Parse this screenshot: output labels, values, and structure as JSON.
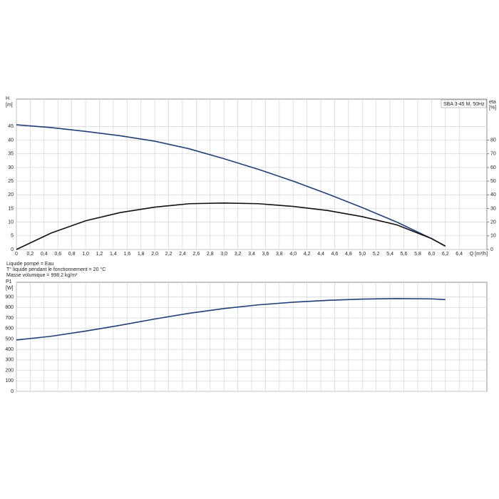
{
  "chart_data": [
    {
      "type": "line",
      "ylabel": "H",
      "yunit": "[m]",
      "y2label": "eta",
      "y2unit": "[%]",
      "xlabel": "Q [m³/h]",
      "legend": "SBA 3-45 M, 50Hz",
      "xlim": [
        0,
        6.8
      ],
      "ylim": [
        0,
        55
      ],
      "y2lim": [
        0,
        110
      ],
      "xticks": [
        0,
        {
          "value": 0.2,
          "label": "0,2"
        },
        {
          "value": 0.4,
          "label": "0,4"
        },
        {
          "value": 0.6,
          "label": "0,6"
        },
        {
          "value": 0.8,
          "label": "0,8"
        },
        {
          "value": 1.0,
          "label": "1,0"
        },
        {
          "value": 1.2,
          "label": "1,2"
        },
        {
          "value": 1.4,
          "label": "1,4"
        },
        {
          "value": 1.6,
          "label": "1,6"
        },
        {
          "value": 1.8,
          "label": "1,8"
        },
        {
          "value": 2.0,
          "label": "2,0"
        },
        {
          "value": 2.2,
          "label": "2,2"
        },
        {
          "value": 2.4,
          "label": "2,4"
        },
        {
          "value": 2.6,
          "label": "2,6"
        },
        {
          "value": 2.8,
          "label": "2,8"
        },
        {
          "value": 3.0,
          "label": "3,0"
        },
        {
          "value": 3.2,
          "label": "3,2"
        },
        {
          "value": 3.4,
          "label": "3,4"
        },
        {
          "value": 3.6,
          "label": "3,6"
        },
        {
          "value": 3.8,
          "label": "3,8"
        },
        {
          "value": 4.0,
          "label": "4,0"
        },
        {
          "value": 4.2,
          "label": "4,2"
        },
        {
          "value": 4.4,
          "label": "4,4"
        },
        {
          "value": 4.6,
          "label": "4,6"
        },
        {
          "value": 4.8,
          "label": "4,8"
        },
        {
          "value": 5.0,
          "label": "5,0"
        },
        {
          "value": 5.2,
          "label": "5,2"
        },
        {
          "value": 5.4,
          "label": "5,4"
        },
        {
          "value": 5.6,
          "label": "5,6"
        },
        {
          "value": 5.8,
          "label": "5,8"
        },
        {
          "value": 6.0,
          "label": "6,0"
        },
        {
          "value": 6.2,
          "label": "6,2"
        },
        {
          "value": 6.4,
          "label": "6,4"
        }
      ],
      "yticks": [
        0,
        5,
        10,
        15,
        20,
        25,
        30,
        35,
        40,
        45
      ],
      "y2ticks": [
        0,
        10,
        20,
        30,
        40,
        50,
        60,
        70,
        80
      ],
      "x": [
        0,
        0.5,
        1,
        1.5,
        2,
        2.5,
        3,
        3.5,
        4,
        4.5,
        5,
        5.5,
        6,
        6.2
      ],
      "series": [
        {
          "color": "#1f3f7a",
          "values": [
            45.6,
            44.6,
            43.2,
            41.6,
            39.6,
            36.8,
            33.2,
            29.3,
            25,
            20.3,
            15.3,
            10,
            4,
            1.2
          ]
        },
        {
          "color": "#111111",
          "axis": "y2",
          "values": [
            0,
            12,
            21,
            27,
            31,
            33.5,
            34,
            33.5,
            31.5,
            28.5,
            24,
            18,
            8,
            2.5
          ]
        }
      ],
      "notes": [
        "Liquide pompé = Eau",
        "T° liquide pendant le fonctionnement = 20 °C",
        "Masse volumique = 998.2 kg/m³"
      ]
    },
    {
      "type": "line",
      "ylabel": "P1",
      "yunit": "[W]",
      "xlim": [
        0,
        6.8
      ],
      "ylim": [
        0,
        1040
      ],
      "yticks": [
        0,
        100,
        200,
        300,
        400,
        500,
        600,
        700,
        800,
        900
      ],
      "xgrid": [
        0,
        0.2,
        0.4,
        0.6,
        0.8,
        1.0,
        1.2,
        1.4,
        1.6,
        1.8,
        2.0,
        2.2,
        2.4,
        2.6,
        2.8,
        3.0,
        3.2,
        3.4,
        3.6,
        3.8,
        4.0,
        4.2,
        4.4,
        4.6,
        4.8,
        5.0,
        5.2,
        5.4,
        5.6,
        5.8,
        6.0,
        6.2,
        6.4,
        6.6
      ],
      "x": [
        0,
        0.5,
        1,
        1.5,
        2,
        2.5,
        3,
        3.5,
        4,
        4.5,
        5,
        5.5,
        6,
        6.2
      ],
      "series": [
        {
          "color": "#1f3f7a",
          "values": [
            490,
            525,
            575,
            630,
            690,
            745,
            790,
            825,
            850,
            868,
            880,
            885,
            882,
            875
          ]
        }
      ]
    }
  ]
}
